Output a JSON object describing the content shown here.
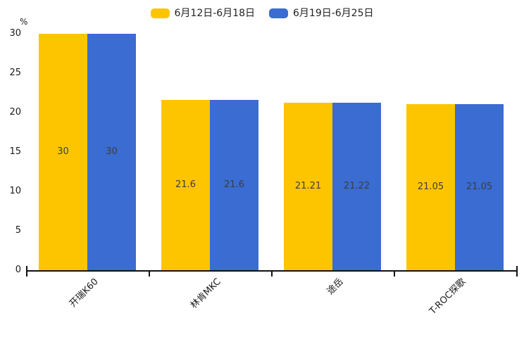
{
  "chart_data": {
    "type": "bar",
    "title": "",
    "unit_label": "%",
    "categories": [
      "开瑞K60",
      "林肯MKC",
      "途岳",
      "T-ROC探歌"
    ],
    "series": [
      {
        "name": "6月12日-6月18日",
        "color": "#FDC500",
        "values": [
          30,
          21.6,
          21.21,
          21.05
        ]
      },
      {
        "name": "6月19日-6月25日",
        "color": "#3A6CD1",
        "values": [
          30,
          21.6,
          21.22,
          21.05
        ]
      }
    ],
    "ylim": [
      0,
      30
    ],
    "yticks": [
      0,
      5,
      10,
      15,
      20,
      25,
      30
    ],
    "legend_position": "top-center",
    "grid": false,
    "value_labels": "inside-middle",
    "axis_color": "#111111",
    "text_color": "#1a1a1a",
    "value_label_color": "#3d3d3d"
  }
}
